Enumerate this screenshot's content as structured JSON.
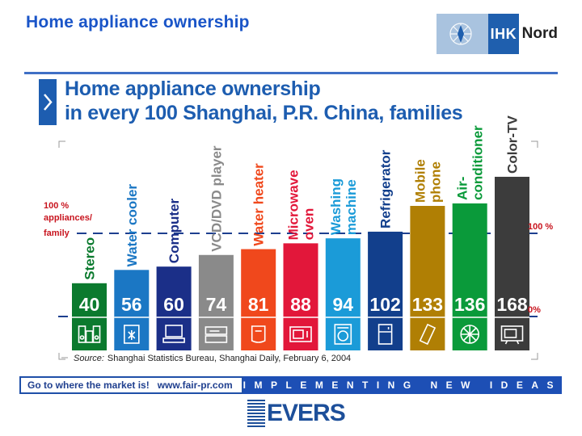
{
  "page": {
    "title": "Home appliance ownership",
    "logo_text_ihk": "IHK",
    "logo_text_nord": "Nord"
  },
  "chart": {
    "title_line1": "Home appliance ownership",
    "title_line2": "in every 100 Shanghai, P.R. China, families",
    "ref_label": "100 % appliances/ family",
    "right_label_100": "100 %",
    "right_label_0": "0%",
    "source_label": "Source:",
    "source_text": "Shanghai Statistics Bureau, Shanghai Daily, February 6, 2004",
    "colors": {
      "title": "#1d5db0",
      "ref_label": "#c8141e",
      "dashed_line": "#1d3f8f"
    }
  },
  "chart_data": {
    "type": "bar",
    "title": "Home appliance ownership in every 100 Shanghai, P.R. China, families",
    "reference_line": 100,
    "categories": [
      "Stereo",
      "Water cooler",
      "Computer",
      "VCD/DVD player",
      "Water heater",
      "Microwave oven",
      "Washing machine",
      "Refrigerator",
      "Mobile phone",
      "Air-conditioner",
      "Color-TV"
    ],
    "values": [
      40,
      56,
      60,
      74,
      81,
      88,
      94,
      102,
      133,
      136,
      168
    ],
    "series_colors": [
      "#0b7a2e",
      "#1b77c4",
      "#1b2f88",
      "#8a8a8a",
      "#f0481c",
      "#e2173a",
      "#1b9bd8",
      "#123f8c",
      "#b07f04",
      "#0a9a3a",
      "#3c3c3c"
    ],
    "label_colors": [
      "#0b7a2e",
      "#1b77c4",
      "#1b2f88",
      "#8a8a8a",
      "#f0481c",
      "#e2173a",
      "#1b9bd8",
      "#123f8c",
      "#b07f04",
      "#0a9a3a",
      "#3c3c3c"
    ],
    "icons": [
      "stereo-icon",
      "water-cooler-icon",
      "computer-icon",
      "dvd-player-icon",
      "water-heater-icon",
      "microwave-icon",
      "washing-machine-icon",
      "refrigerator-icon",
      "mobile-phone-icon",
      "air-conditioner-icon",
      "tv-icon"
    ],
    "category_lines": [
      [
        "Stereo"
      ],
      [
        "Water cooler"
      ],
      [
        "Computer"
      ],
      [
        "VCD/DVD player"
      ],
      [
        "Water heater"
      ],
      [
        "Microwave",
        "oven"
      ],
      [
        "Washing",
        "machine"
      ],
      [
        "Refrigerator"
      ],
      [
        "Mobile",
        "phone"
      ],
      [
        "Air-",
        "conditioner"
      ],
      [
        "Color-TV"
      ]
    ]
  },
  "footer": {
    "slogan": "Go to where the market is!",
    "url": "www.fair-pr.com",
    "tagline": "IMPLEMENTING NEW IDEAS",
    "brand": "EVERS"
  }
}
